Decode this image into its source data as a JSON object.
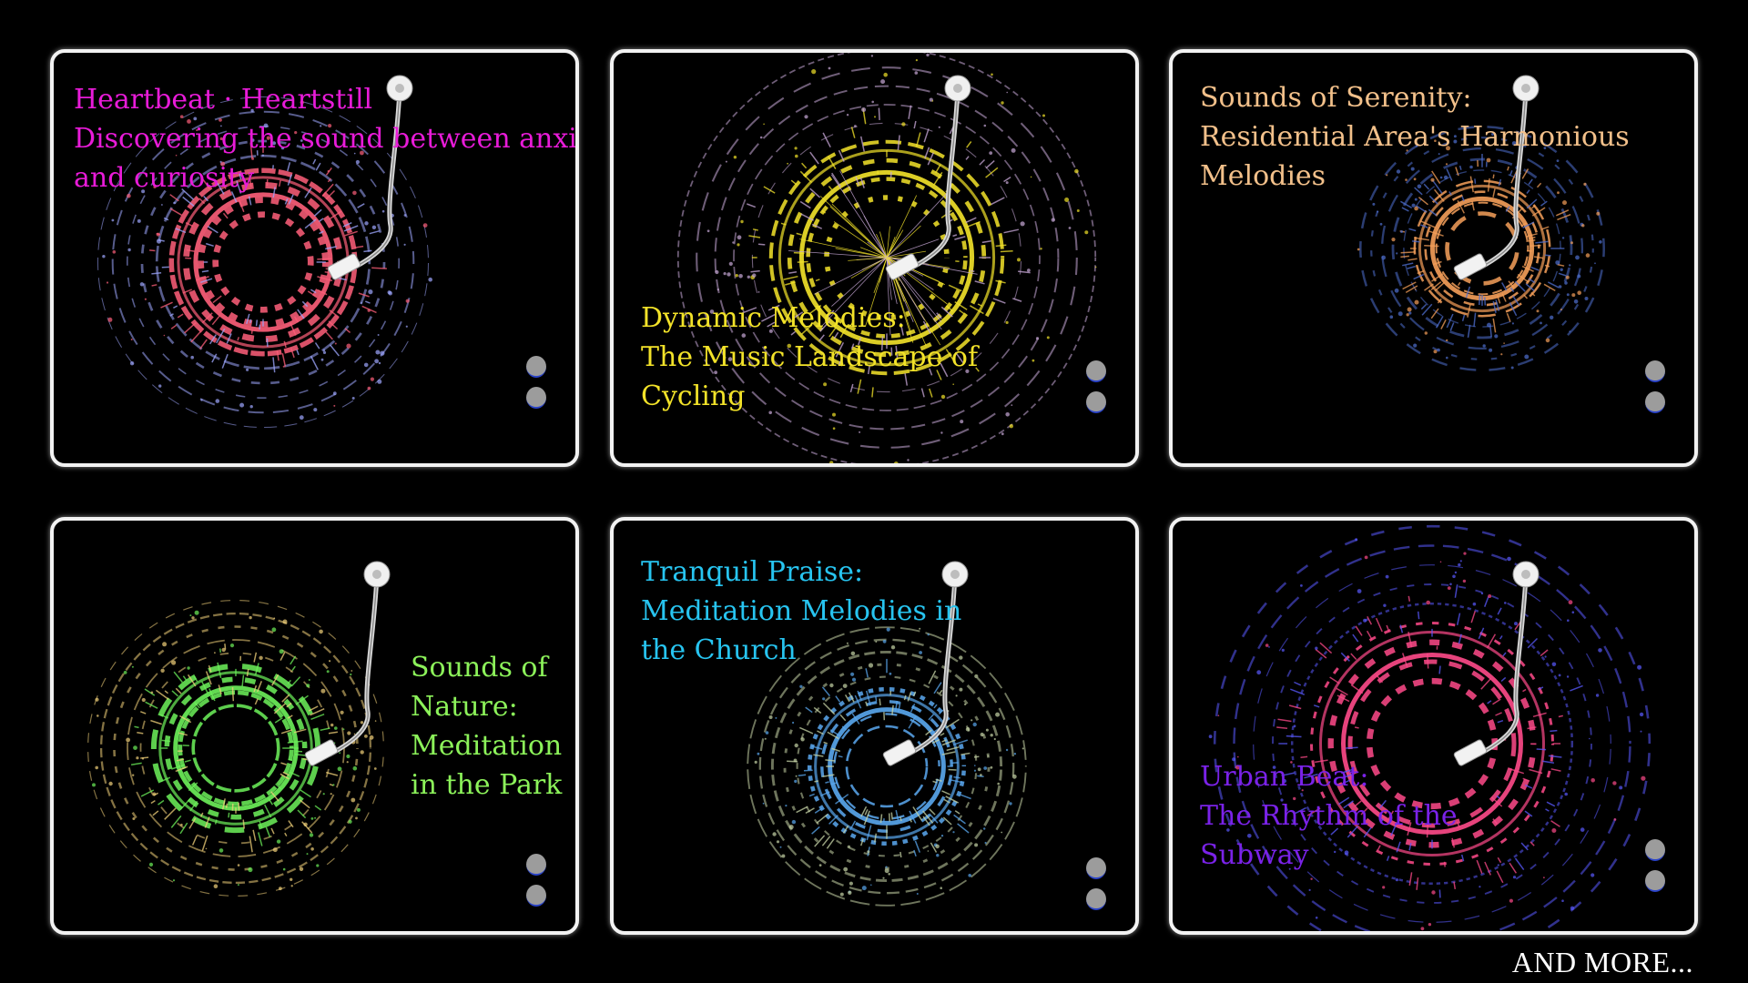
{
  "cards": [
    {
      "id": "heartbeat",
      "lines": [
        "Heartbeat · Heartstill",
        "Discovering the sound between anxiety",
        "and curiosity"
      ],
      "color": "#e81bd8",
      "viz_colors": [
        "#ff5f7a",
        "#9ea7ff",
        "#ffffff"
      ],
      "icon": "vinyl-record-icon"
    },
    {
      "id": "cycling",
      "lines": [
        "Dynamic Melodies:",
        "The Music Landscape of",
        "Cycling"
      ],
      "color": "#f2e229",
      "viz_colors": [
        "#f4e42a",
        "#c9a9d9",
        "#ffffff"
      ],
      "icon": "vinyl-record-icon"
    },
    {
      "id": "residential",
      "lines": [
        "Sounds of Serenity:",
        "Residential Area's Harmonious",
        "Melodies"
      ],
      "color": "#f2c08a",
      "viz_colors": [
        "#f6a05a",
        "#4f6fd0",
        "#ffffff"
      ],
      "icon": "vinyl-record-icon"
    },
    {
      "id": "park",
      "lines": [
        "Sounds of",
        "Nature:",
        "Meditation",
        "in the Park"
      ],
      "color": "#8cf25a",
      "viz_colors": [
        "#6df25a",
        "#f2d27a",
        "#ffffff"
      ],
      "icon": "vinyl-record-icon"
    },
    {
      "id": "church",
      "lines": [
        "Tranquil Praise:",
        "Meditation Melodies in",
        "the Church"
      ],
      "color": "#27c4f0",
      "viz_colors": [
        "#5aa8f0",
        "#c8d6a8",
        "#ffffff"
      ],
      "icon": "vinyl-record-icon"
    },
    {
      "id": "subway",
      "lines": [
        "Urban Beat:",
        "The Rhythm of the",
        "Subway"
      ],
      "color": "#7a22e8",
      "viz_colors": [
        "#ff4a8a",
        "#5a5aff",
        "#ffffff"
      ],
      "icon": "vinyl-record-icon"
    }
  ],
  "footer": {
    "and_more": "AND MORE..."
  }
}
